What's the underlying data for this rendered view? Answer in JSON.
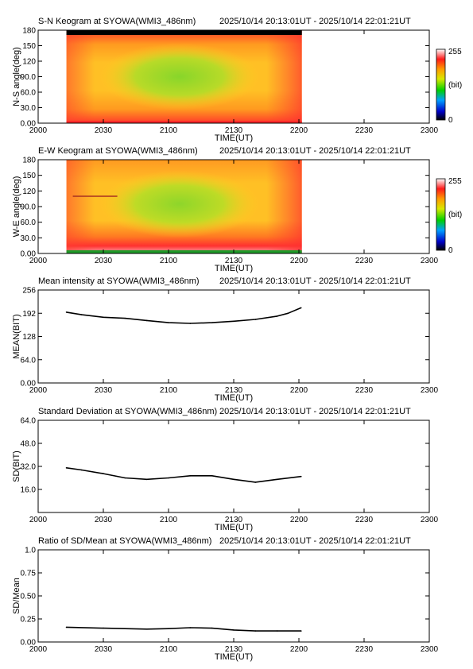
{
  "figure": {
    "time_range": "2025/10/14 20:13:01UT - 2025/10/14 22:01:21UT",
    "x_ticks": [
      "2000",
      "2030",
      "2100",
      "2130",
      "2200",
      "2230",
      "2300"
    ],
    "x_label": "TIME(UT)"
  },
  "chart_data": [
    {
      "type": "heatmap",
      "title": "S-N Keogram at SYOWA(WMI3_486nm)",
      "ylabel": "N-S angle(deg)",
      "yticks": [
        "0.00",
        "30.0",
        "60.0",
        "90.0",
        "120",
        "150",
        "180"
      ],
      "ylim": [
        0,
        180
      ],
      "x_extent": [
        "20:13:01",
        "22:01:21"
      ],
      "colorbar": {
        "top": "255",
        "unit": "(bit)",
        "bottom": "0"
      },
      "description_values": {
        "edge_intensity_bit": 235,
        "center_intensity_bit": 150,
        "center_angle_deg": 90,
        "center_time": "21:05"
      }
    },
    {
      "type": "heatmap",
      "title": "E-W Keogram at SYOWA(WMI3_486nm)",
      "ylabel": "W-E angle(deg)",
      "yticks": [
        "0.00",
        "30.0",
        "60.0",
        "90.0",
        "120",
        "150",
        "180"
      ],
      "ylim": [
        0,
        180
      ],
      "x_extent": [
        "20:13:01",
        "22:01:21"
      ],
      "colorbar": {
        "top": "255",
        "unit": "(bit)",
        "bottom": "0"
      },
      "description_values": {
        "edge_intensity_bit": 235,
        "center_intensity_bit": 150,
        "center_angle_deg": 95,
        "center_time": "21:05"
      }
    },
    {
      "type": "line",
      "title": "Mean intensity at SYOWA(WMI3_486nm)",
      "ylabel": "MEAN(BIT)",
      "yticks": [
        "0.00",
        "64.0",
        "128",
        "192",
        "256"
      ],
      "ylim": [
        0,
        256
      ],
      "x": [
        "20:13",
        "20:20",
        "20:30",
        "20:40",
        "20:50",
        "21:00",
        "21:10",
        "21:20",
        "21:30",
        "21:40",
        "21:50",
        "21:55",
        "22:01"
      ],
      "values": [
        195,
        188,
        181,
        178,
        172,
        166,
        164,
        166,
        170,
        175,
        184,
        192,
        207
      ]
    },
    {
      "type": "line",
      "title": "Standard Deviation at SYOWA(WMI3_486nm)",
      "ylabel": "SD(BIT)",
      "yticks": [
        "16.0",
        "32.0",
        "48.0",
        "64.0"
      ],
      "ylim": [
        0,
        64
      ],
      "x": [
        "20:13",
        "20:20",
        "20:30",
        "20:40",
        "20:50",
        "21:00",
        "21:10",
        "21:20",
        "21:30",
        "21:40",
        "21:50",
        "22:01"
      ],
      "values": [
        31,
        29.5,
        27,
        24,
        23,
        24,
        25.5,
        25.5,
        23,
        21,
        23,
        25
      ]
    },
    {
      "type": "line",
      "title": "Ratio of SD/Mean at SYOWA(WMI3_486nm)",
      "ylabel": "SD/Mean",
      "yticks": [
        "0.00",
        "0.25",
        "0.50",
        "0.75",
        "1.0"
      ],
      "ylim": [
        0,
        1
      ],
      "x": [
        "20:13",
        "20:30",
        "20:50",
        "21:00",
        "21:10",
        "21:20",
        "21:30",
        "21:40",
        "21:50",
        "22:01"
      ],
      "values": [
        0.16,
        0.15,
        0.14,
        0.145,
        0.155,
        0.15,
        0.13,
        0.12,
        0.12,
        0.12
      ]
    }
  ]
}
